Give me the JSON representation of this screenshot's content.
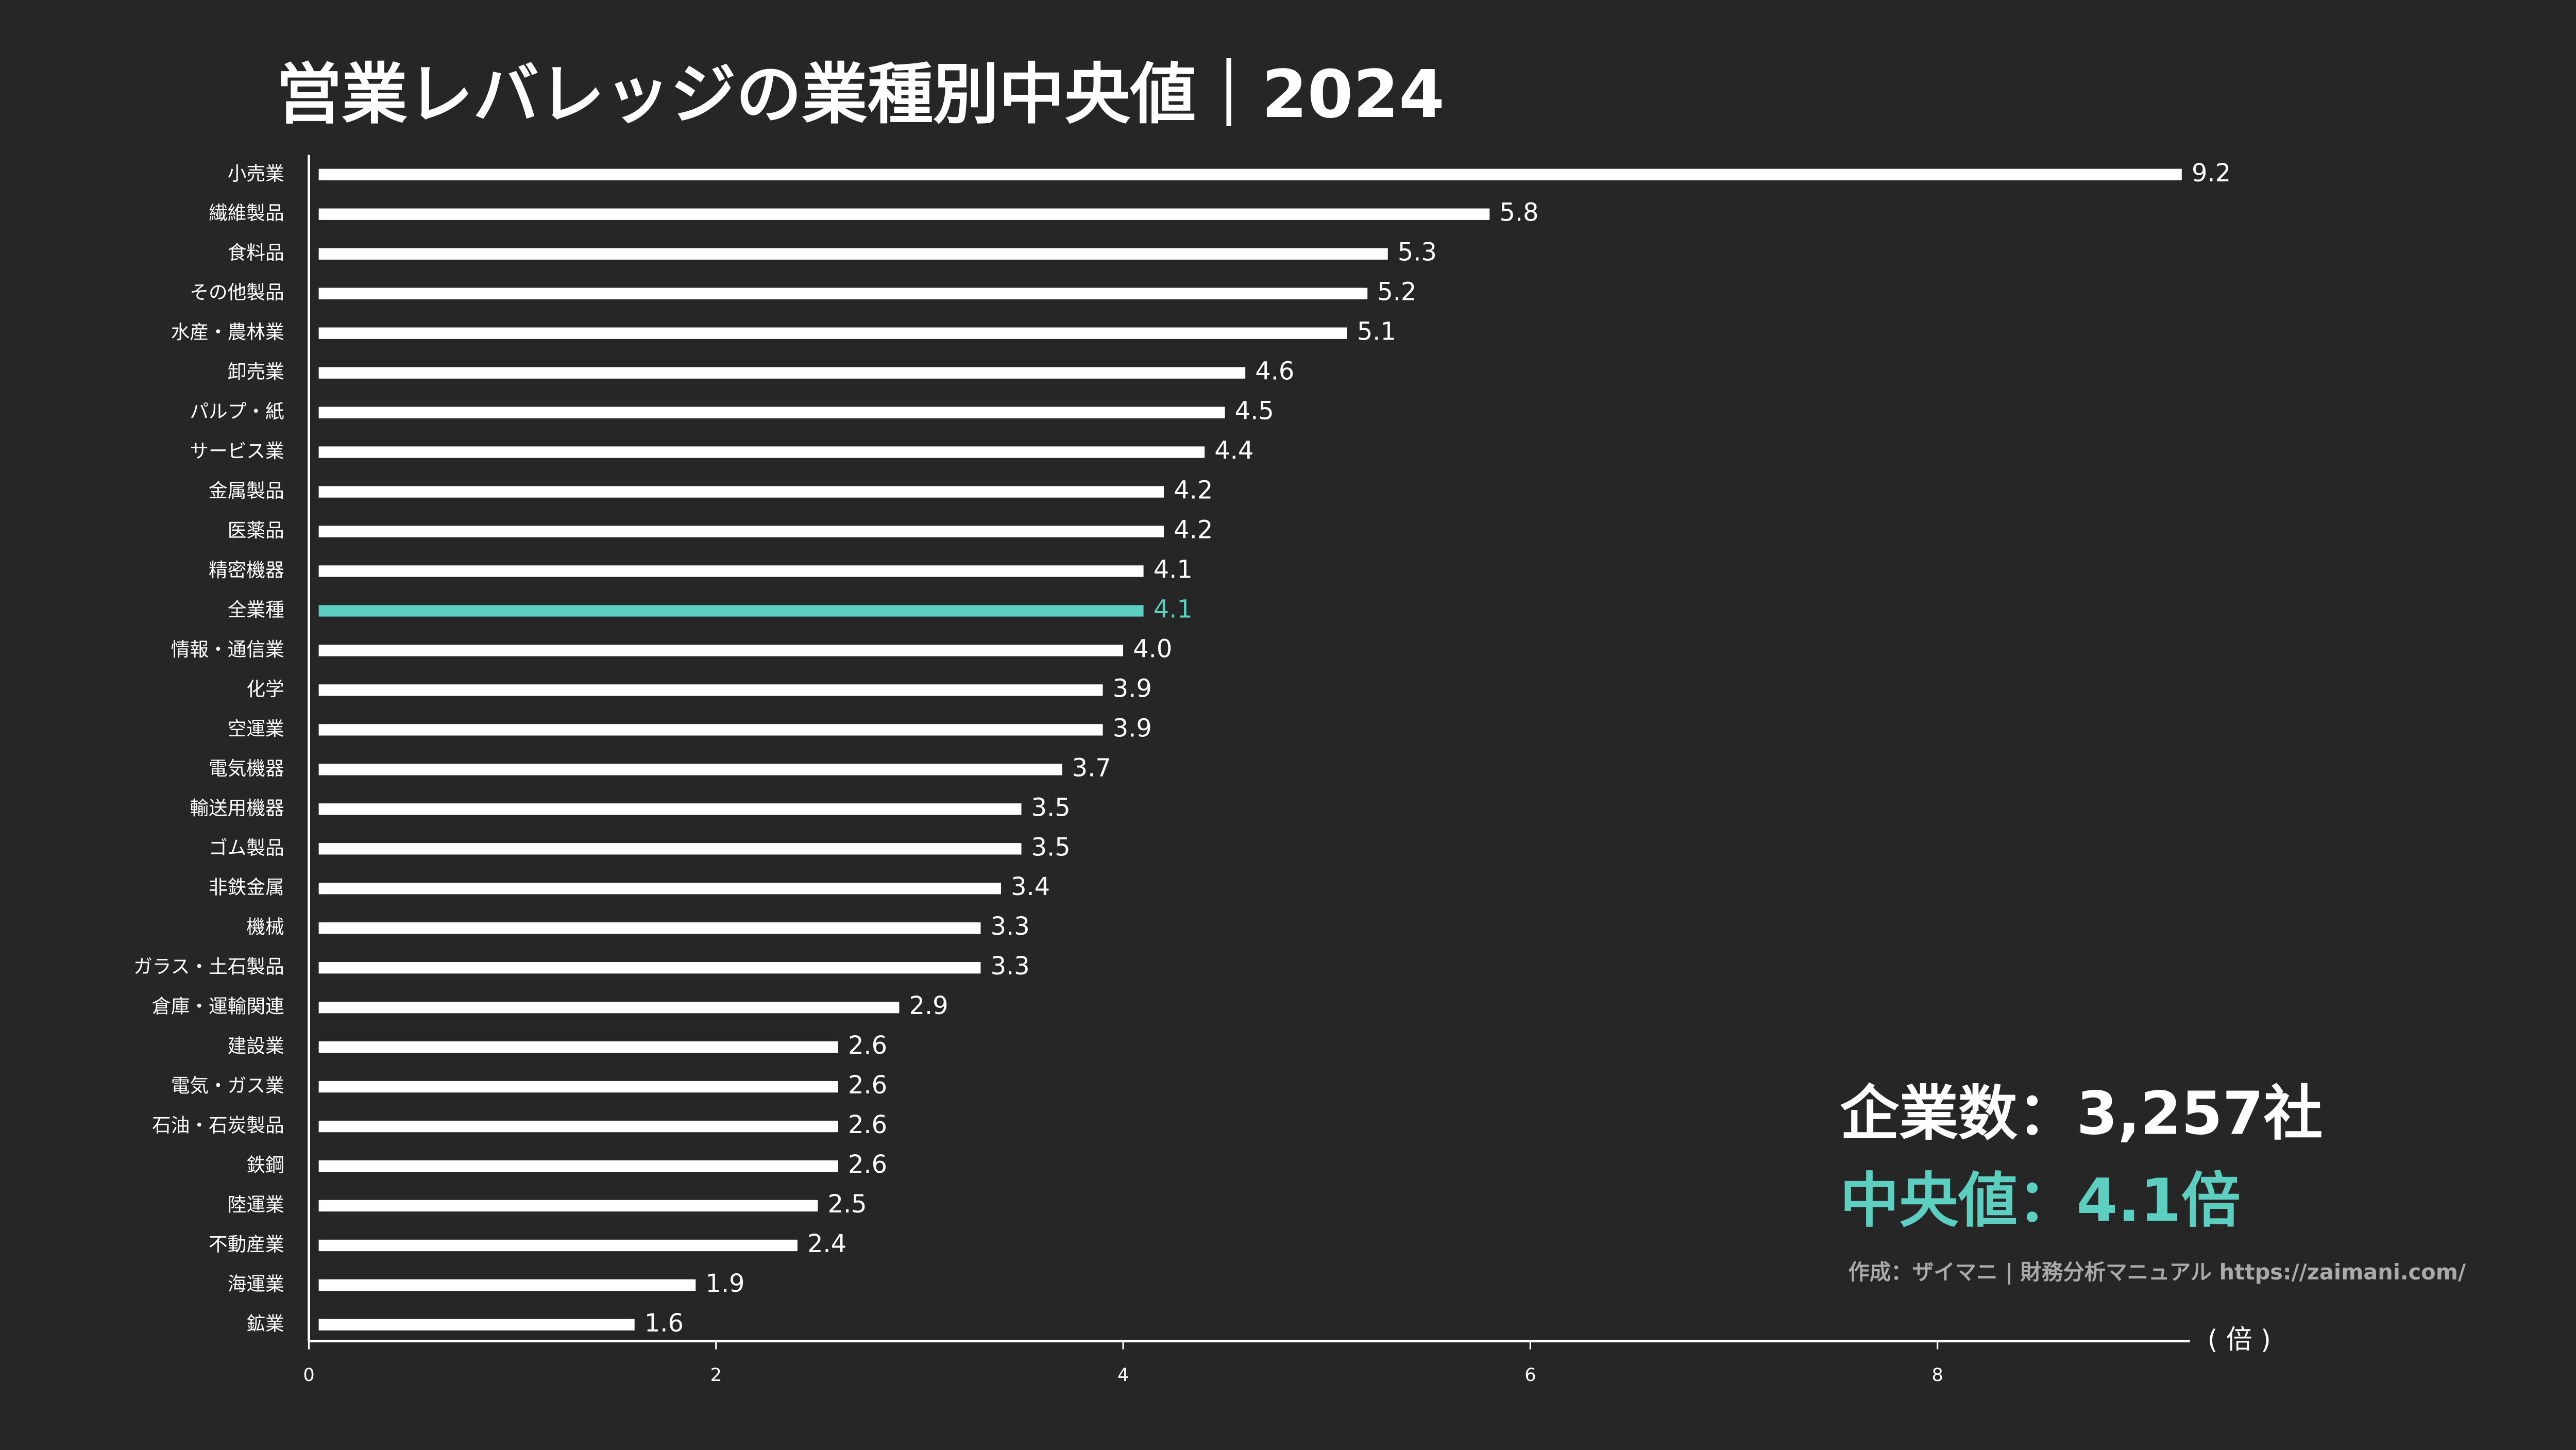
{
  "chart_data": {
    "type": "barh",
    "title": "営業レバレッジの業種別中央値｜2024",
    "categories": [
      "小売業",
      "繊維製品",
      "食料品",
      "その他製品",
      "水産・農林業",
      "卸売業",
      "パルプ・紙",
      "サービス業",
      "金属製品",
      "医薬品",
      "精密機器",
      "全業種",
      "情報・通信業",
      "化学",
      "空運業",
      "電気機器",
      "輸送用機器",
      "ゴム製品",
      "非鉄金属",
      "機械",
      "ガラス・土石製品",
      "倉庫・運輸関連",
      "建設業",
      "電気・ガス業",
      "石油・石炭製品",
      "鉄鋼",
      "陸運業",
      "不動産業",
      "海運業",
      "鉱業"
    ],
    "values": [
      9.2,
      5.8,
      5.3,
      5.2,
      5.1,
      4.6,
      4.5,
      4.4,
      4.2,
      4.2,
      4.1,
      4.1,
      4.0,
      3.9,
      3.9,
      3.7,
      3.5,
      3.5,
      3.4,
      3.3,
      3.3,
      2.9,
      2.6,
      2.6,
      2.6,
      2.6,
      2.5,
      2.4,
      1.9,
      1.6
    ],
    "value_labels": [
      "9.2",
      "5.8",
      "5.3",
      "5.2",
      "5.1",
      "4.6",
      "4.5",
      "4.4",
      "4.2",
      "4.2",
      "4.1",
      "4.1",
      "4.0",
      "3.9",
      "3.9",
      "3.7",
      "3.5",
      "3.5",
      "3.4",
      "3.3",
      "3.3",
      "2.9",
      "2.6",
      "2.6",
      "2.6",
      "2.6",
      "2.5",
      "2.4",
      "1.9",
      "1.6"
    ],
    "colors": [
      "#ffffff",
      "#ffffff",
      "#ffffff",
      "#ffffff",
      "#ffffff",
      "#ffffff",
      "#ffffff",
      "#ffffff",
      "#ffffff",
      "#ffffff",
      "#ffffff",
      "#5ccfc0",
      "#ffffff",
      "#ffffff",
      "#ffffff",
      "#ffffff",
      "#ffffff",
      "#ffffff",
      "#ffffff",
      "#ffffff",
      "#ffffff",
      "#ffffff",
      "#ffffff",
      "#ffffff",
      "#ffffff",
      "#ffffff",
      "#ffffff",
      "#ffffff",
      "#ffffff",
      "#ffffff"
    ],
    "xlim": [
      0,
      9.24
    ],
    "xticks": [
      0,
      2,
      4,
      6,
      8
    ],
    "xlabel": "( 倍 )",
    "annotations": [
      "企業数：3,257社",
      "中央値：4.1倍",
      "作成：ザイマニ | 財務分析マニュアル https://zaimani.com/"
    ]
  }
}
